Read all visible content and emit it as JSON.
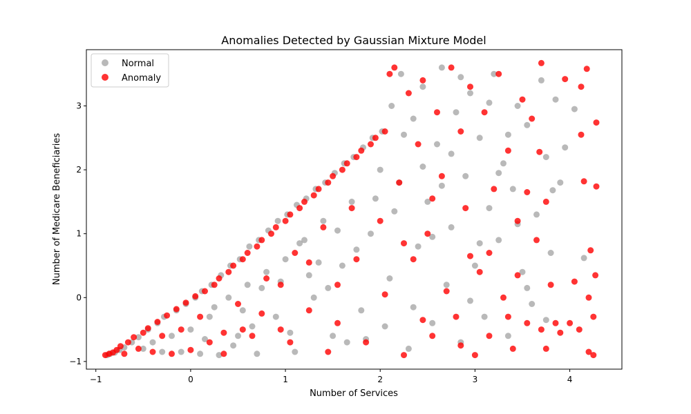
{
  "chart_data": {
    "type": "scatter",
    "title": "Anomalies Detected by Gaussian Mixture Model",
    "xlabel": "Number of Services",
    "ylabel": "Number of Medicare Beneficiaries",
    "xlim": [
      -1.1,
      4.55
    ],
    "ylim": [
      -1.12,
      3.88
    ],
    "x_ticks": [
      -1,
      0,
      1,
      2,
      3,
      4
    ],
    "y_ticks": [
      -1,
      0,
      1,
      2,
      3
    ],
    "grid": false,
    "legend_position": "top-left",
    "series": [
      {
        "name": "Normal",
        "color": "#808080",
        "opacity": 0.55,
        "points": [
          [
            -0.88,
            -0.9
          ],
          [
            -0.85,
            -0.88
          ],
          [
            -0.8,
            -0.86
          ],
          [
            -0.75,
            -0.82
          ],
          [
            -0.7,
            -0.78
          ],
          [
            -0.62,
            -0.7
          ],
          [
            -0.55,
            -0.62
          ],
          [
            -0.5,
            -0.8
          ],
          [
            -0.45,
            -0.5
          ],
          [
            -0.4,
            -0.7
          ],
          [
            -0.35,
            -0.4
          ],
          [
            -0.3,
            -0.85
          ],
          [
            -0.28,
            -0.3
          ],
          [
            -0.2,
            -0.6
          ],
          [
            -0.15,
            -0.2
          ],
          [
            -0.1,
            -0.85
          ],
          [
            -0.05,
            -0.1
          ],
          [
            0.0,
            -0.5
          ],
          [
            0.05,
            0.0
          ],
          [
            0.1,
            -0.88
          ],
          [
            0.12,
            0.1
          ],
          [
            0.2,
            -0.3
          ],
          [
            0.22,
            0.2
          ],
          [
            0.3,
            -0.9
          ],
          [
            0.32,
            0.35
          ],
          [
            0.4,
            0.0
          ],
          [
            0.42,
            0.5
          ],
          [
            0.5,
            -0.6
          ],
          [
            0.52,
            0.6
          ],
          [
            0.6,
            0.2
          ],
          [
            0.62,
            0.8
          ],
          [
            0.7,
            -0.88
          ],
          [
            0.72,
            0.9
          ],
          [
            0.8,
            0.4
          ],
          [
            0.82,
            1.05
          ],
          [
            0.9,
            -0.3
          ],
          [
            0.92,
            1.2
          ],
          [
            1.0,
            0.6
          ],
          [
            1.02,
            1.3
          ],
          [
            1.1,
            -0.85
          ],
          [
            1.12,
            1.45
          ],
          [
            1.2,
            0.9
          ],
          [
            1.22,
            1.55
          ],
          [
            1.3,
            0.0
          ],
          [
            1.32,
            1.7
          ],
          [
            1.4,
            1.2
          ],
          [
            1.42,
            1.8
          ],
          [
            1.5,
            -0.6
          ],
          [
            1.52,
            1.95
          ],
          [
            1.6,
            0.5
          ],
          [
            1.62,
            2.1
          ],
          [
            1.7,
            1.5
          ],
          [
            1.72,
            2.2
          ],
          [
            1.8,
            -0.2
          ],
          [
            1.82,
            2.35
          ],
          [
            1.9,
            1.0
          ],
          [
            1.92,
            2.5
          ],
          [
            2.0,
            2.0
          ],
          [
            2.02,
            2.6
          ],
          [
            2.1,
            0.3
          ],
          [
            2.12,
            3.0
          ],
          [
            2.2,
            1.8
          ],
          [
            2.22,
            3.5
          ],
          [
            2.3,
            -0.8
          ],
          [
            2.35,
            2.8
          ],
          [
            2.4,
            0.8
          ],
          [
            2.45,
            3.3
          ],
          [
            2.5,
            1.5
          ],
          [
            2.55,
            -0.4
          ],
          [
            2.6,
            2.4
          ],
          [
            2.65,
            3.6
          ],
          [
            2.7,
            0.2
          ],
          [
            2.75,
            1.1
          ],
          [
            2.8,
            2.9
          ],
          [
            2.85,
            -0.7
          ],
          [
            2.9,
            1.9
          ],
          [
            2.95,
            3.2
          ],
          [
            3.0,
            0.5
          ],
          [
            3.05,
            2.5
          ],
          [
            3.1,
            -0.3
          ],
          [
            3.15,
            1.4
          ],
          [
            3.2,
            3.5
          ],
          [
            3.25,
            0.9
          ],
          [
            3.3,
            2.1
          ],
          [
            3.35,
            -0.6
          ],
          [
            3.4,
            1.7
          ],
          [
            3.45,
            3.0
          ],
          [
            3.5,
            0.4
          ],
          [
            3.55,
            2.7
          ],
          [
            3.6,
            -0.1
          ],
          [
            3.65,
            1.3
          ],
          [
            3.7,
            3.4
          ],
          [
            3.75,
            2.2
          ],
          [
            3.8,
            0.7
          ],
          [
            3.85,
            3.1
          ],
          [
            3.9,
            1.8
          ],
          [
            4.05,
            2.95
          ],
          [
            4.15,
            0.62
          ],
          [
            3.82,
            1.68
          ],
          [
            0.15,
            -0.65
          ],
          [
            0.55,
            -0.2
          ],
          [
            0.95,
            0.25
          ],
          [
            1.35,
            0.55
          ],
          [
            1.75,
            0.75
          ],
          [
            2.15,
            1.35
          ],
          [
            2.55,
            0.95
          ],
          [
            2.95,
            -0.05
          ],
          [
            3.35,
            2.55
          ],
          [
            1.05,
            -0.55
          ],
          [
            0.45,
            -0.75
          ],
          [
            1.65,
            -0.7
          ],
          [
            2.05,
            -0.45
          ],
          [
            2.45,
            2.05
          ],
          [
            2.85,
            3.45
          ],
          [
            3.25,
            1.95
          ],
          [
            0.25,
            -0.15
          ],
          [
            0.75,
            0.15
          ],
          [
            1.25,
            0.35
          ],
          [
            1.55,
            1.05
          ],
          [
            1.95,
            1.55
          ],
          [
            2.25,
            2.55
          ],
          [
            2.65,
            1.75
          ],
          [
            3.05,
            0.85
          ],
          [
            3.45,
            1.15
          ],
          [
            3.75,
            -0.35
          ],
          [
            0.65,
            -0.45
          ],
          [
            1.15,
            0.85
          ],
          [
            1.45,
            0.15
          ],
          [
            1.85,
            -0.65
          ],
          [
            2.35,
            -0.15
          ],
          [
            2.75,
            2.25
          ],
          [
            3.15,
            3.05
          ],
          [
            3.55,
            0.15
          ],
          [
            3.95,
            2.35
          ]
        ]
      },
      {
        "name": "Anomaly",
        "color": "#ff0000",
        "opacity": 0.8,
        "points": [
          [
            -0.9,
            -0.9
          ],
          [
            -0.86,
            -0.88
          ],
          [
            -0.82,
            -0.86
          ],
          [
            -0.78,
            -0.82
          ],
          [
            -0.74,
            -0.76
          ],
          [
            -0.7,
            -0.88
          ],
          [
            -0.66,
            -0.7
          ],
          [
            -0.6,
            -0.62
          ],
          [
            -0.55,
            -0.8
          ],
          [
            -0.5,
            -0.55
          ],
          [
            -0.45,
            -0.48
          ],
          [
            -0.4,
            -0.85
          ],
          [
            -0.35,
            -0.38
          ],
          [
            -0.3,
            -0.6
          ],
          [
            -0.25,
            -0.28
          ],
          [
            -0.2,
            -0.88
          ],
          [
            -0.15,
            -0.18
          ],
          [
            -0.1,
            -0.5
          ],
          [
            -0.05,
            -0.08
          ],
          [
            0.0,
            -0.82
          ],
          [
            0.05,
            0.02
          ],
          [
            0.1,
            -0.3
          ],
          [
            0.15,
            0.1
          ],
          [
            0.2,
            -0.7
          ],
          [
            0.25,
            0.2
          ],
          [
            0.3,
            0.3
          ],
          [
            0.35,
            -0.55
          ],
          [
            0.4,
            0.4
          ],
          [
            0.45,
            0.5
          ],
          [
            0.5,
            -0.1
          ],
          [
            0.55,
            0.6
          ],
          [
            0.6,
            0.7
          ],
          [
            0.65,
            -0.6
          ],
          [
            0.7,
            0.8
          ],
          [
            0.75,
            0.9
          ],
          [
            0.8,
            0.3
          ],
          [
            0.85,
            1.0
          ],
          [
            0.9,
            1.1
          ],
          [
            0.95,
            -0.5
          ],
          [
            1.0,
            1.2
          ],
          [
            1.05,
            1.3
          ],
          [
            1.1,
            0.7
          ],
          [
            1.15,
            1.4
          ],
          [
            1.2,
            1.5
          ],
          [
            1.25,
            -0.2
          ],
          [
            1.3,
            1.6
          ],
          [
            1.35,
            1.7
          ],
          [
            1.4,
            1.1
          ],
          [
            1.45,
            1.8
          ],
          [
            1.5,
            1.9
          ],
          [
            1.55,
            0.2
          ],
          [
            1.6,
            2.0
          ],
          [
            1.65,
            2.1
          ],
          [
            1.7,
            1.4
          ],
          [
            1.75,
            2.2
          ],
          [
            1.8,
            2.3
          ],
          [
            1.85,
            -0.7
          ],
          [
            1.9,
            2.4
          ],
          [
            1.95,
            2.5
          ],
          [
            2.0,
            1.2
          ],
          [
            2.05,
            2.6
          ],
          [
            2.1,
            3.5
          ],
          [
            2.15,
            3.6
          ],
          [
            2.2,
            1.8
          ],
          [
            2.25,
            -0.9
          ],
          [
            2.3,
            3.2
          ],
          [
            2.35,
            0.6
          ],
          [
            2.4,
            2.4
          ],
          [
            2.45,
            3.4
          ],
          [
            2.5,
            1.0
          ],
          [
            2.55,
            -0.6
          ],
          [
            2.6,
            2.9
          ],
          [
            2.65,
            1.9
          ],
          [
            2.7,
            0.1
          ],
          [
            2.75,
            3.6
          ],
          [
            2.8,
            -0.3
          ],
          [
            2.85,
            2.6
          ],
          [
            2.9,
            1.4
          ],
          [
            2.95,
            3.3
          ],
          [
            3.0,
            -0.9
          ],
          [
            3.05,
            0.4
          ],
          [
            3.1,
            2.9
          ],
          [
            3.15,
            -0.6
          ],
          [
            3.2,
            1.7
          ],
          [
            3.25,
            3.5
          ],
          [
            3.3,
            0.0
          ],
          [
            3.35,
            2.3
          ],
          [
            3.4,
            -0.8
          ],
          [
            3.45,
            1.2
          ],
          [
            3.5,
            3.1
          ],
          [
            3.55,
            -0.4
          ],
          [
            3.6,
            2.8
          ],
          [
            3.65,
            0.9
          ],
          [
            3.7,
            -0.5
          ],
          [
            3.75,
            1.5
          ],
          [
            3.8,
            0.2
          ],
          [
            3.85,
            -0.4
          ],
          [
            3.9,
            -0.55
          ],
          [
            4.0,
            -0.4
          ],
          [
            4.05,
            0.25
          ],
          [
            4.1,
            -0.5
          ],
          [
            4.12,
            3.3
          ],
          [
            4.15,
            1.82
          ],
          [
            4.18,
            3.58
          ],
          [
            4.2,
            0.0
          ],
          [
            4.22,
            0.74
          ],
          [
            4.25,
            -0.3
          ],
          [
            4.27,
            0.35
          ],
          [
            4.28,
            1.74
          ],
          [
            4.28,
            2.74
          ],
          [
            4.25,
            -0.9
          ],
          [
            4.2,
            -0.85
          ],
          [
            3.95,
            3.42
          ],
          [
            4.12,
            2.55
          ],
          [
            3.7,
            3.67
          ],
          [
            3.68,
            2.28
          ],
          [
            0.35,
            -0.88
          ],
          [
            0.55,
            -0.5
          ],
          [
            0.95,
            0.2
          ],
          [
            1.25,
            0.55
          ],
          [
            1.45,
            -0.85
          ],
          [
            1.75,
            0.6
          ],
          [
            2.25,
            0.85
          ],
          [
            2.55,
            1.55
          ],
          [
            2.85,
            -0.75
          ],
          [
            3.15,
            0.7
          ],
          [
            3.35,
            -0.3
          ],
          [
            3.55,
            1.65
          ],
          [
            3.75,
            -0.8
          ],
          [
            1.05,
            -0.7
          ],
          [
            0.75,
            -0.25
          ],
          [
            1.55,
            -0.4
          ],
          [
            2.05,
            0.05
          ],
          [
            2.45,
            -0.35
          ],
          [
            2.95,
            0.65
          ],
          [
            3.45,
            0.35
          ]
        ]
      }
    ]
  }
}
